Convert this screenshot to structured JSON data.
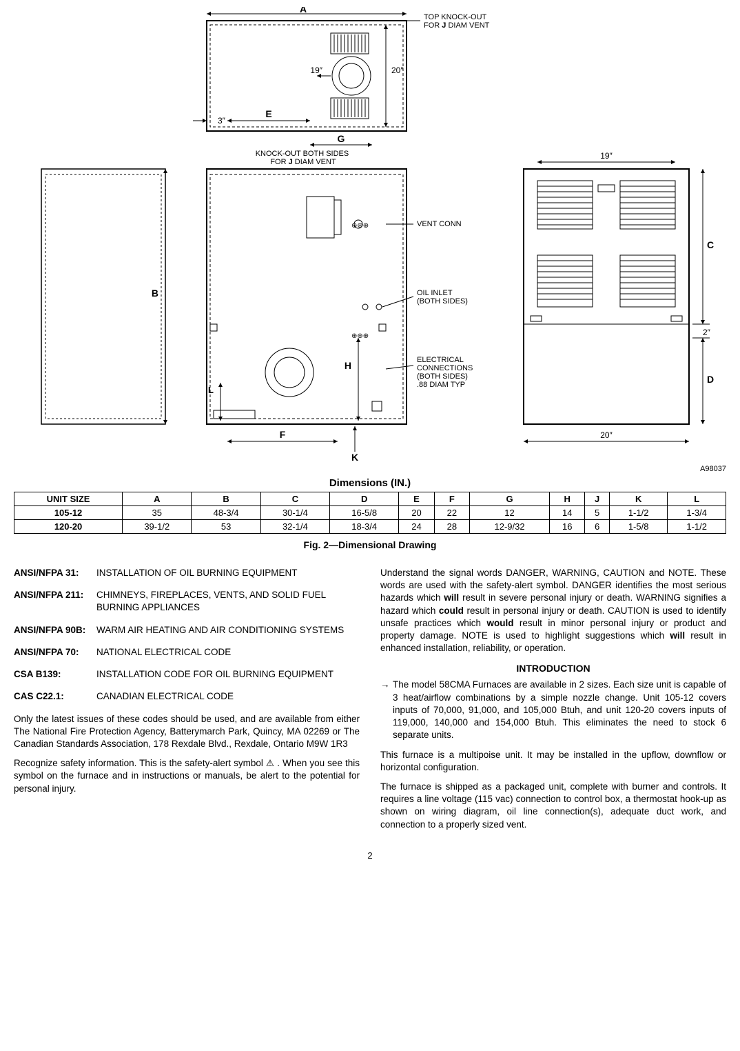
{
  "figure_id": "A98037",
  "diagram": {
    "labels": {
      "A": "A",
      "B": "B",
      "C": "C",
      "D": "D",
      "E": "E",
      "F": "F",
      "G": "G",
      "H": "H",
      "K": "K",
      "L": "L",
      "dim_3": "3″",
      "dim_19": "19″",
      "dim_20": "20″",
      "dim_2": "2″",
      "top_knockout": "TOP KNOCK-OUT\nFOR J DIAM VENT",
      "knockout_both": "KNOCK-OUT BOTH SIDES\nFOR J DIAM VENT",
      "vent_conn": "VENT CONN",
      "oil_inlet": "OIL INLET\n(BOTH SIDES)",
      "electrical": "ELECTRICAL\nCONNECTIONS\n(BOTH SIDES)\n.88 DIAM TYP"
    }
  },
  "table_title": "Dimensions (IN.)",
  "table": {
    "columns": [
      "UNIT SIZE",
      "A",
      "B",
      "C",
      "D",
      "E",
      "F",
      "G",
      "H",
      "J",
      "K",
      "L"
    ],
    "rows": [
      [
        "105-12",
        "35",
        "48-3/4",
        "30-1/4",
        "16-5/8",
        "20",
        "22",
        "12",
        "14",
        "5",
        "1-1/2",
        "1-3/4"
      ],
      [
        "120-20",
        "39-1/2",
        "53",
        "32-1/4",
        "18-3/4",
        "24",
        "28",
        "12-9/32",
        "16",
        "6",
        "1-5/8",
        "1-1/2"
      ]
    ]
  },
  "fig_caption": "Fig. 2—Dimensional Drawing",
  "standards": [
    {
      "code": "ANSI/NFPA 31:",
      "desc": "INSTALLATION OF OIL BURNING EQUIPMENT"
    },
    {
      "code": "ANSI/NFPA 211:",
      "desc": "CHIMNEYS, FIREPLACES, VENTS, AND SOLID FUEL BURNING APPLIANCES"
    },
    {
      "code": "ANSI/NFPA 90B:",
      "desc": "WARM AIR HEATING AND AIR CONDITIONING SYSTEMS"
    },
    {
      "code": "ANSI/NFPA 70:",
      "desc": "NATIONAL ELECTRICAL CODE"
    },
    {
      "code": "CSA B139:",
      "desc": "INSTALLATION CODE FOR OIL BURNING EQUIPMENT"
    },
    {
      "code": "CAS C22.1:",
      "desc": "CANADIAN ELECTRICAL CODE"
    }
  ],
  "left_paras": [
    "Only the latest issues of these codes should be used, and are available from either The National Fire Protection Agency, Batterymarch Park, Quincy, MA 02269 or The Canadian Standards Association, 178 Rexdale Blvd., Rexdale, Ontario M9W 1R3",
    "Recognize safety information. This is the safety-alert symbol ⚠ . When you see this symbol on the furnace and in instructions or manuals, be alert to the potential for personal injury."
  ],
  "right_paras_top": [
    "Understand the signal words DANGER, WARNING, CAUTION and NOTE. These words are used with the safety-alert symbol. DANGER identifies the most serious hazards which will result in severe personal injury or death. WARNING signifies a hazard which could result in personal injury or death. CAUTION is used to identify unsafe practices which would result in minor personal injury or product and property damage. NOTE is used to highlight suggestions which will result in enhanced installation, reliability, or operation."
  ],
  "intro_heading": "INTRODUCTION",
  "right_paras_intro": [
    "The model 58CMA Furnaces are available in 2 sizes. Each size unit is capable of 3 heat/airflow combinations by a simple nozzle change. Unit 105-12 covers inputs of 70,000, 91,000, and 105,000 Btuh, and unit 120-20 covers inputs of 119,000, 140,000 and 154,000 Btuh. This eliminates the need to stock 6 separate units.",
    "This furnace is a multipoise unit. It may be installed in the upflow, downflow or horizontal configuration.",
    "The furnace is shipped as a packaged unit, complete with burner and controls. It requires a line voltage (115 vac) connection to control box, a thermostat hook-up as shown on wiring diagram, oil line connection(s), adequate duct work, and connection to a properly sized vent."
  ],
  "page_num": "2"
}
